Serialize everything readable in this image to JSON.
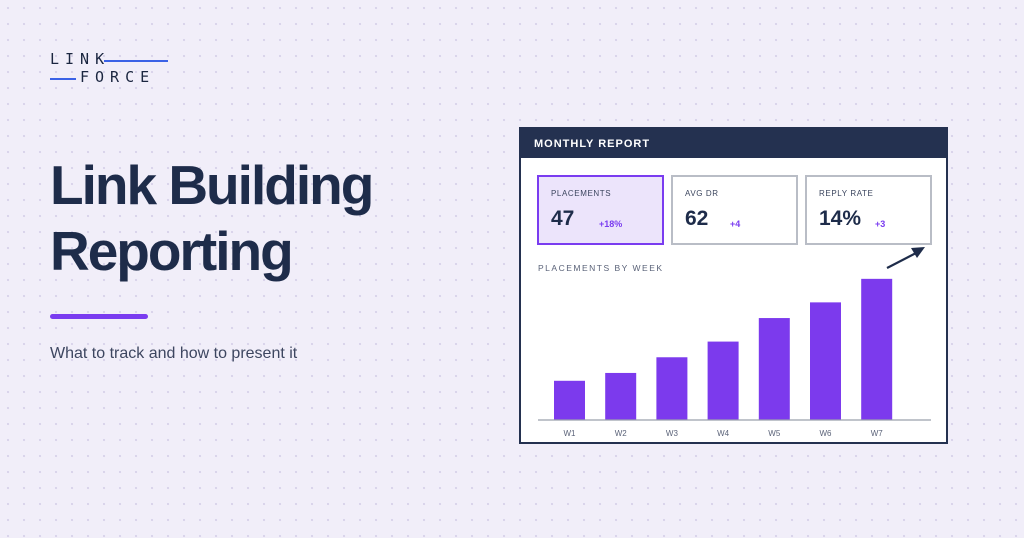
{
  "logo": {
    "line1": "LINK",
    "line2": "FORCE",
    "bar_color": "#3b62e6"
  },
  "headline": {
    "line1": "Link Building",
    "line2": "Reporting"
  },
  "subtitle": "What to track and how to present it",
  "colors": {
    "accent": "#7a3cf0",
    "navy": "#243150",
    "background": "#f1eef9"
  },
  "report": {
    "title": "MONTHLY REPORT",
    "kpis": [
      {
        "label": "PLACEMENTS",
        "value": "47",
        "delta": "+18%"
      },
      {
        "label": "AVG DR",
        "value": "62",
        "delta": "+4"
      },
      {
        "label": "REPLY RATE",
        "value": "14%",
        "delta": "+3"
      }
    ],
    "trend_icon": "arrow-up-right-icon",
    "chart_title": "PLACEMENTS BY WEEK"
  },
  "chart_data": {
    "type": "bar",
    "title": "PLACEMENTS BY WEEK",
    "categories": [
      "W1",
      "W2",
      "W3",
      "W4",
      "W5",
      "W6",
      "W7"
    ],
    "values": [
      5,
      6,
      8,
      10,
      13,
      15,
      18
    ],
    "xlabel": "",
    "ylabel": "",
    "ylim": [
      0,
      19
    ],
    "grid": false,
    "bar_color": "#7c3aed"
  }
}
